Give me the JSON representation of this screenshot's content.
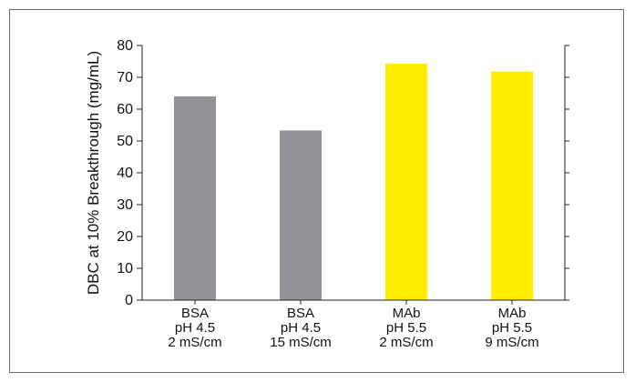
{
  "chart_data": {
    "type": "bar",
    "categories": [
      [
        "BSA",
        "pH 4.5",
        "2 mS/cm"
      ],
      [
        "BSA",
        "pH 4.5",
        "15 mS/cm"
      ],
      [
        "MAb",
        "pH 5.5",
        "2 mS/cm"
      ],
      [
        "MAb",
        "pH 5.5",
        "9 mS/cm"
      ]
    ],
    "values": [
      64,
      53.3,
      74.3,
      71.8
    ],
    "bar_colors": [
      "#939296",
      "#939296",
      "#ffec00",
      "#ffec00"
    ],
    "title": "",
    "xlabel": "",
    "ylabel": "DBC at 10% Breakthrough (mg/mL)",
    "ylim": [
      0,
      80
    ],
    "yticks": [
      0,
      10,
      20,
      30,
      40,
      50,
      60,
      70,
      80
    ],
    "grid": false,
    "legend": false
  }
}
